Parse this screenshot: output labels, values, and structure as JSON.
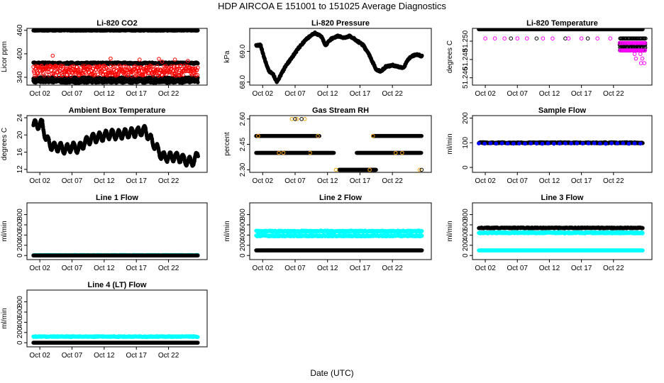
{
  "figure": {
    "title": "HDP   AIRCOA E   151001 to 151025   Average Diagnostics",
    "xlabel": "Date (UTC)"
  },
  "chart_data": [
    {
      "type": "scatter",
      "id": "p1",
      "title": "Li-820 CO2",
      "ylabel": "Licor ppm",
      "x_ticks": [
        "Oct 02",
        "Oct 07",
        "Oct 12",
        "Oct 17",
        "Oct 22"
      ],
      "y_ticks": [
        "340",
        "400",
        "460"
      ],
      "ylim": [
        320,
        465
      ],
      "series": [
        {
          "name": "high",
          "color": "#000000",
          "marker": "filled",
          "mode": "band",
          "y": 460,
          "jitter": 1
        },
        {
          "name": "mid",
          "color": "#000000",
          "marker": "filled",
          "mode": "band",
          "y": 376,
          "jitter": 2
        },
        {
          "name": "low",
          "color": "#000000",
          "marker": "filled",
          "mode": "band",
          "y": 337,
          "jitter": 3
        },
        {
          "name": "low2",
          "color": "#000000",
          "marker": "filled",
          "mode": "band",
          "y": 329,
          "jitter": 3
        },
        {
          "name": "red",
          "color": "#ff0000",
          "marker": "open",
          "mode": "band",
          "y": 357,
          "jitter": 13
        },
        {
          "name": "red-spikes",
          "color": "#ff0000",
          "marker": "open",
          "mode": "points",
          "points": [
            [
              3,
              395
            ],
            [
              12,
              388
            ],
            [
              16.5,
              385
            ],
            [
              19.5,
              387
            ],
            [
              20,
              380
            ],
            [
              22,
              385
            ],
            [
              24,
              382
            ]
          ]
        }
      ]
    },
    {
      "type": "line",
      "id": "p2",
      "title": "Li-820 Pressure",
      "ylabel": "kPa",
      "x_ticks": [
        "Oct 02",
        "Oct 07",
        "Oct 12",
        "Oct 17",
        "Oct 22"
      ],
      "y_ticks": [
        "68.0",
        "69.0"
      ],
      "ylim": [
        67.9,
        69.75
      ],
      "series": [
        {
          "name": "pressure",
          "color": "#000000",
          "marker": "filled",
          "mode": "curve",
          "points": [
            [
              0,
              69.2
            ],
            [
              0.7,
              69.2
            ],
            [
              1.2,
              68.8
            ],
            [
              2,
              68.35
            ],
            [
              2.6,
              68.25
            ],
            [
              3.2,
              68.0
            ],
            [
              3.6,
              68.15
            ],
            [
              4.5,
              68.5
            ],
            [
              5.5,
              68.8
            ],
            [
              6.5,
              69.1
            ],
            [
              7.3,
              69.3
            ],
            [
              8,
              69.45
            ],
            [
              9,
              69.6
            ],
            [
              10,
              69.5
            ],
            [
              10.7,
              69.2
            ],
            [
              11.5,
              69.4
            ],
            [
              12.5,
              69.5
            ],
            [
              13.5,
              69.45
            ],
            [
              14.5,
              69.5
            ],
            [
              15.5,
              69.35
            ],
            [
              16.5,
              69.2
            ],
            [
              17.5,
              68.85
            ],
            [
              18.5,
              68.4
            ],
            [
              19.2,
              68.35
            ],
            [
              20,
              68.5
            ],
            [
              21,
              68.55
            ],
            [
              22,
              68.5
            ],
            [
              22.7,
              68.45
            ],
            [
              23.3,
              68.7
            ],
            [
              24,
              68.85
            ],
            [
              24.8,
              68.9
            ],
            [
              25.5,
              68.85
            ]
          ]
        }
      ]
    },
    {
      "type": "scatter",
      "id": "p3",
      "title": "Li-820 Temperature",
      "ylabel": "degrees C",
      "x_ticks": [
        "Oct 02",
        "Oct 07",
        "Oct 12",
        "Oct 17",
        "Oct 22"
      ],
      "y_ticks": [
        "51.246",
        "51.248",
        "51.250"
      ],
      "ylim": [
        51.2452,
        51.2514
      ],
      "series": [
        {
          "name": "black-top",
          "color": "#000000",
          "marker": "filled",
          "mode": "band",
          "y": 51.2513,
          "jitter": 0
        },
        {
          "name": "black-mid",
          "color": "#000000",
          "marker": "open",
          "mode": "points",
          "points": [
            [
              5,
              51.2503
            ],
            [
              9,
              51.2503
            ],
            [
              13.5,
              51.2503
            ],
            [
              17,
              51.2503
            ]
          ]
        },
        {
          "name": "magenta-mid",
          "color": "#ff00ff",
          "marker": "open",
          "mode": "points",
          "points": [
            [
              1,
              51.2503
            ],
            [
              2.5,
              51.2503
            ],
            [
              4,
              51.2503
            ],
            [
              6,
              51.2503
            ],
            [
              7.5,
              51.2503
            ],
            [
              10,
              51.2503
            ],
            [
              11.5,
              51.2503
            ],
            [
              14,
              51.2503
            ],
            [
              16,
              51.2503
            ],
            [
              18.5,
              51.2503
            ],
            [
              20.5,
              51.2503
            ],
            [
              23,
              51.2503
            ],
            [
              25,
              51.2503
            ]
          ]
        },
        {
          "name": "black-late",
          "color": "#000000",
          "marker": "open",
          "mode": "cluster",
          "x0": 22,
          "x1": 26,
          "ys": [
            51.2503,
            51.2498,
            51.2496,
            51.2493,
            51.249
          ]
        },
        {
          "name": "magenta-late",
          "color": "#ff00ff",
          "marker": "open",
          "mode": "cluster",
          "x0": 22,
          "x1": 26,
          "ys": [
            51.2498,
            51.249
          ]
        },
        {
          "name": "magenta-drop",
          "color": "#ff00ff",
          "marker": "open",
          "mode": "points",
          "points": [
            [
              24.3,
              51.2486
            ],
            [
              25.2,
              51.2486
            ],
            [
              24.5,
              51.2481
            ],
            [
              25.5,
              51.2481
            ],
            [
              25.3,
              51.2476
            ],
            [
              25.8,
              51.2476
            ]
          ]
        }
      ]
    },
    {
      "type": "line",
      "id": "p4",
      "title": "Ambient Box Temperature",
      "ylabel": "degrees C",
      "x_ticks": [
        "Oct 02",
        "Oct 07",
        "Oct 12",
        "Oct 17",
        "Oct 22"
      ],
      "y_ticks": [
        "12",
        "16",
        "20",
        "24"
      ],
      "ylim": [
        11.3,
        24.5
      ],
      "series": [
        {
          "name": "ambient",
          "color": "#000000",
          "marker": "filled",
          "mode": "diurnal",
          "base": [
            [
              0,
              22.3
            ],
            [
              1,
              22.5
            ],
            [
              1.4,
              22.5
            ],
            [
              2,
              19
            ],
            [
              3,
              17.2
            ],
            [
              4,
              17.2
            ],
            [
              5,
              16.6
            ],
            [
              6,
              17.3
            ],
            [
              7,
              16.8
            ],
            [
              8,
              18.2
            ],
            [
              9,
              19.2
            ],
            [
              10,
              19.4
            ],
            [
              11,
              19.8
            ],
            [
              12,
              20.2
            ],
            [
              13,
              20.0
            ],
            [
              14,
              20.3
            ],
            [
              15,
              20.5
            ],
            [
              16,
              20.6
            ],
            [
              17,
              21.0
            ],
            [
              17.4,
              21.0
            ],
            [
              18,
              19.5
            ],
            [
              19,
              17.3
            ],
            [
              20,
              15.0
            ],
            [
              21,
              14.8
            ],
            [
              22,
              15.0
            ],
            [
              23,
              14.6
            ],
            [
              24,
              13.8
            ],
            [
              25,
              13.9
            ],
            [
              25.5,
              15.5
            ]
          ],
          "amp": 1.0
        }
      ]
    },
    {
      "type": "scatter",
      "id": "p5",
      "title": "Gas Stream RH",
      "ylabel": "percent",
      "x_ticks": [
        "Oct 02",
        "Oct 07",
        "Oct 12",
        "Oct 17",
        "Oct 22"
      ],
      "y_ticks": [
        "2.30",
        "2.45",
        "2.60"
      ],
      "ylim": [
        2.285,
        2.62
      ],
      "series": [
        {
          "name": "seg-a",
          "color": "#000000",
          "marker": "filled",
          "mode": "segment",
          "y": 2.5,
          "x0": 0,
          "x1": 9.8
        },
        {
          "name": "seg-b",
          "color": "#000000",
          "marker": "filled",
          "mode": "segment",
          "y": 2.4,
          "x0": 0,
          "x1": 12
        },
        {
          "name": "seg-c",
          "color": "#000000",
          "marker": "filled",
          "mode": "segment",
          "y": 2.3,
          "x0": 12.8,
          "x1": 18.5
        },
        {
          "name": "seg-d",
          "color": "#000000",
          "marker": "filled",
          "mode": "segment",
          "y": 2.4,
          "x0": 15.5,
          "x1": 25.5
        },
        {
          "name": "seg-e",
          "color": "#000000",
          "marker": "filled",
          "mode": "segment",
          "y": 2.5,
          "x0": 18,
          "x1": 25.5
        },
        {
          "name": "orange",
          "color": "#ffa500",
          "marker": "open",
          "mode": "points",
          "points": [
            [
              0.3,
              2.5
            ],
            [
              3.5,
              2.4
            ],
            [
              4.2,
              2.4
            ],
            [
              5.5,
              2.6
            ],
            [
              6.3,
              2.6
            ],
            [
              7.5,
              2.6
            ],
            [
              8.3,
              2.4
            ],
            [
              9.5,
              2.5
            ],
            [
              12.3,
              2.3
            ],
            [
              17.5,
              2.3
            ],
            [
              18,
              2.5
            ],
            [
              21.5,
              2.4
            ],
            [
              22.5,
              2.4
            ],
            [
              25.2,
              2.3
            ]
          ]
        },
        {
          "name": "black-open",
          "color": "#000000",
          "marker": "open",
          "mode": "points",
          "points": [
            [
              6,
              2.6
            ],
            [
              7,
              2.6
            ],
            [
              7.8,
              2.4
            ],
            [
              18.2,
              2.3
            ],
            [
              25.5,
              2.3
            ]
          ]
        }
      ]
    },
    {
      "type": "scatter",
      "id": "p6",
      "title": "Sample Flow",
      "ylabel": "ml/min",
      "x_ticks": [
        "Oct 02",
        "Oct 07",
        "Oct 12",
        "Oct 17",
        "Oct 22"
      ],
      "y_ticks": [
        "0",
        "100",
        "200"
      ],
      "ylim": [
        -20,
        210
      ],
      "series": [
        {
          "name": "flow",
          "color": "#000000",
          "marker": "filled",
          "mode": "band",
          "y": 100,
          "jitter": 2
        },
        {
          "name": "blue",
          "color": "#0000ff",
          "marker": "filled",
          "mode": "band",
          "y": 97,
          "jitter": 1,
          "sparse": 1
        }
      ]
    },
    {
      "type": "scatter",
      "id": "p7",
      "title": "Line 1 Flow",
      "ylabel": "ml/min",
      "x_ticks": [
        "Oct 02",
        "Oct 07",
        "Oct 12",
        "Oct 17",
        "Oct 22"
      ],
      "y_ticks": [
        "0",
        "200",
        "400",
        "600",
        "800"
      ],
      "ylim": [
        -80,
        1030
      ],
      "series": [
        {
          "name": "cyan",
          "color": "#00ffff",
          "marker": "open",
          "mode": "band",
          "y": 5,
          "jitter": 6
        },
        {
          "name": "black",
          "color": "#000000",
          "marker": "filled",
          "mode": "band",
          "y": 0,
          "jitter": 0
        }
      ]
    },
    {
      "type": "scatter",
      "id": "p8",
      "title": "Line 2 Flow",
      "ylabel": "ml/min",
      "x_ticks": [
        "Oct 02",
        "Oct 07",
        "Oct 12",
        "Oct 17",
        "Oct 22"
      ],
      "y_ticks": [
        "0",
        "200",
        "400",
        "600",
        "800"
      ],
      "ylim": [
        -80,
        1030
      ],
      "series": [
        {
          "name": "cyan-hi",
          "color": "#00ffff",
          "marker": "open",
          "mode": "band",
          "y": 475,
          "jitter": 12
        },
        {
          "name": "cyan-lo",
          "color": "#00ffff",
          "marker": "open",
          "mode": "band",
          "y": 385,
          "jitter": 12
        },
        {
          "name": "black",
          "color": "#000000",
          "marker": "filled",
          "mode": "band",
          "y": 100,
          "jitter": 0
        }
      ]
    },
    {
      "type": "scatter",
      "id": "p9",
      "title": "Line 3 Flow",
      "ylabel": "ml/min",
      "x_ticks": [
        "Oct 02",
        "Oct 07",
        "Oct 12",
        "Oct 17",
        "Oct 22"
      ],
      "y_ticks": [
        "0",
        "200",
        "400",
        "600",
        "800"
      ],
      "ylim": [
        -80,
        1030
      ],
      "series": [
        {
          "name": "black",
          "color": "#000000",
          "marker": "filled",
          "mode": "band",
          "y": 540,
          "jitter": 8
        },
        {
          "name": "cyan-hi",
          "color": "#00ffff",
          "marker": "open",
          "mode": "band",
          "y": 445,
          "jitter": 12
        },
        {
          "name": "cyan-lo",
          "color": "#00ffff",
          "marker": "filled",
          "mode": "band",
          "y": 100,
          "jitter": 0
        }
      ]
    },
    {
      "type": "scatter",
      "id": "p10",
      "title": "Line 4 (LT) Flow",
      "ylabel": "ml/min",
      "x_ticks": [
        "Oct 02",
        "Oct 07",
        "Oct 12",
        "Oct 17",
        "Oct 22"
      ],
      "y_ticks": [
        "0",
        "200",
        "400",
        "600",
        "800"
      ],
      "ylim": [
        -80,
        1030
      ],
      "series": [
        {
          "name": "cyan",
          "color": "#00ffff",
          "marker": "open",
          "mode": "band",
          "y": 120,
          "jitter": 8
        },
        {
          "name": "black",
          "color": "#000000",
          "marker": "filled",
          "mode": "band",
          "y": 0,
          "jitter": 0
        }
      ]
    }
  ]
}
